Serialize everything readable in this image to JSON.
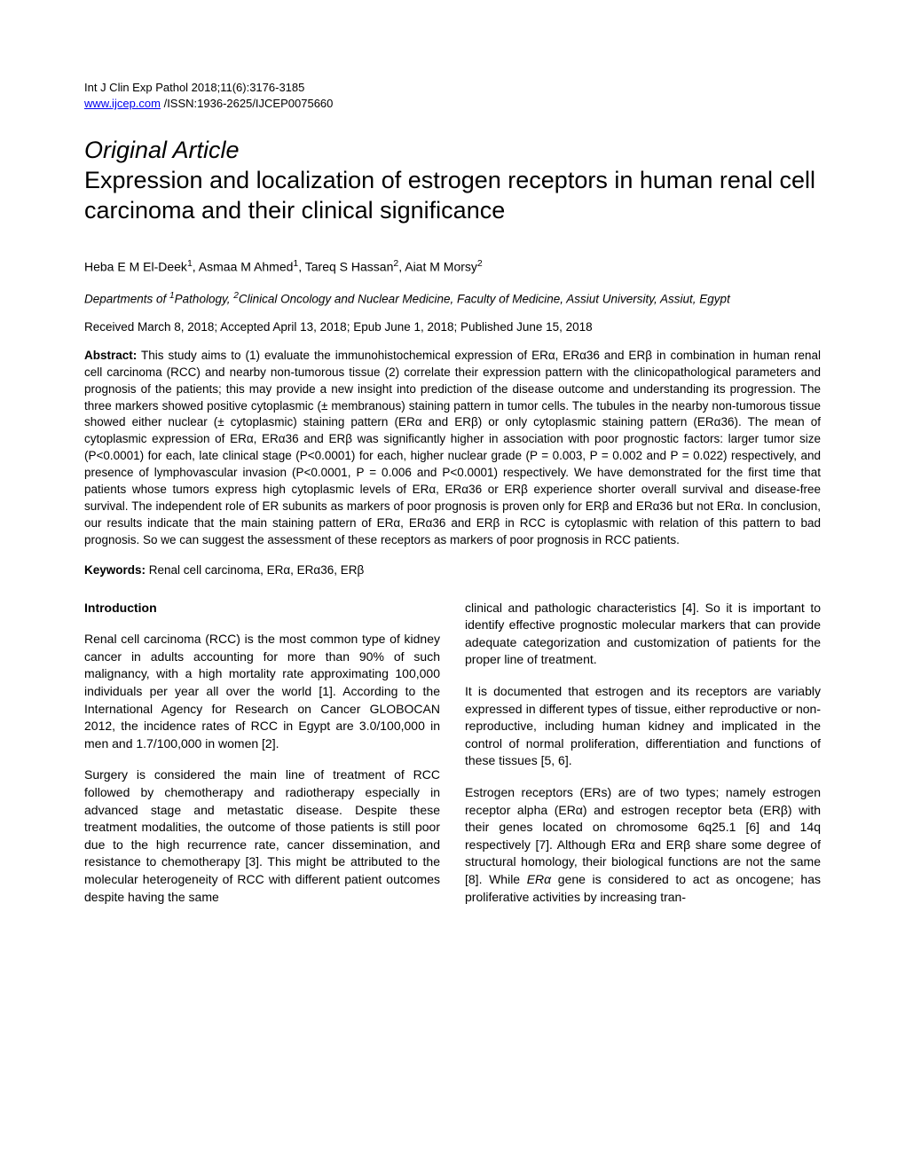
{
  "header": {
    "journal_line": "Int J Clin Exp Pathol 2018;11(6):3176-3185",
    "link_text": "www.ijcep.com",
    "issn_text": " /ISSN:1936-2625/IJCEP0075660"
  },
  "article": {
    "type": "Original Article",
    "title": "Expression and localization of estrogen receptors in human renal cell carcinoma and their clinical significance",
    "authors_html": "Heba E M El-Deek<sup>1</sup>, Asmaa M Ahmed<sup>1</sup>, Tareq S Hassan<sup>2</sup>, Aiat M Morsy<sup>2</sup>",
    "affiliations_html": "Departments of <sup>1</sup>Pathology, <sup>2</sup>Clinical Oncology and Nuclear Medicine, Faculty of Medicine, Assiut University, Assiut, Egypt",
    "dates": "Received March 8, 2018; Accepted April 13, 2018; Epub June 1, 2018; Published June 15, 2018"
  },
  "abstract": {
    "label": "Abstract:",
    "text": " This study aims to (1) evaluate the immunohistochemical expression of ERα, ERα36 and ERβ in combination in human renal cell carcinoma (RCC) and nearby non-tumorous tissue (2) correlate their expression pattern with the clinicopathological parameters and prognosis of the patients; this may provide a new insight into prediction of the disease outcome and understanding its progression. The three markers showed positive cytoplasmic (± membranous) staining pattern in tumor cells. The tubules in the nearby non-tumorous tissue showed either nuclear (± cytoplasmic) staining pattern (ERα and ERβ) or only cytoplasmic staining pattern (ERα36). The mean of cytoplasmic expression of ERα, ERα36 and ERβ was significantly higher in association with poor prognostic factors: larger tumor size (P<0.0001) for each, late clinical stage (P<0.0001) for each, higher nuclear grade (P = 0.003, P = 0.002 and P = 0.022) respectively, and presence of lymphovascular invasion (P<0.0001, P = 0.006 and P<0.0001) respectively. We have demonstrated for the first time that patients whose tumors express high cytoplasmic levels of ERα, ERα36 or ERβ experience shorter overall survival and disease-free survival. The independent role of ER subunits as markers of poor prognosis is proven only for ERβ and ERα36 but not ERα. In conclusion, our results indicate that the main staining pattern of ERα, ERα36 and ERβ in RCC is cytoplasmic with relation of this pattern to bad prognosis. So we can suggest the assessment of these receptors as markers of poor prognosis in RCC patients."
  },
  "keywords": {
    "label": "Keywords:",
    "text": " Renal cell carcinoma, ERα, ERα36, ERβ"
  },
  "body": {
    "introduction_heading": "Introduction",
    "left_col": {
      "p1": "Renal cell carcinoma (RCC) is the most common type of kidney cancer in adults accounting for more than 90% of such malignancy, with a high mortality rate approximating 100,000 individuals per year all over the world [1]. According to the International Agency for Research on Cancer GLOBOCAN 2012, the incidence rates of RCC in Egypt are 3.0/100,000 in men and 1.7/100,000 in women [2].",
      "p2": "Surgery is considered the main line of treatment of RCC followed by chemotherapy and radiotherapy especially in advanced stage and metastatic disease. Despite these treatment modalities, the outcome of those patients is still poor due to the high recurrence rate, cancer dissemination, and resistance to chemotherapy [3]. This might be attributed to the molecular heterogeneity of RCC with different patient outcomes despite having the same"
    },
    "right_col": {
      "p1": "clinical and pathologic characteristics [4]. So it is important to identify effective prognostic molecular markers that can provide adequate categorization and customization of patients for the proper line of treatment.",
      "p2": "It is documented that estrogen and its receptors are variably expressed in different types of tissue, either reproductive or non- reproductive, including human kidney and implicated in the control of normal proliferation, differentiation and functions of these tissues [5, 6].",
      "p3_html": "Estrogen receptors (ERs) are of two types; namely estrogen receptor alpha (ERα) and estrogen receptor beta (ERβ) with their genes located on chromosome 6q25.1 [6] and 14q respectively [7]. Although ERα and ERβ share some degree of structural homology, their biological functions are not the same [8]. While <i>ERα</i> gene is considered to act as oncogene; has proliferative activities by increasing tran-"
    }
  },
  "colors": {
    "text": "#000000",
    "link": "#0000ee",
    "background": "#ffffff"
  }
}
